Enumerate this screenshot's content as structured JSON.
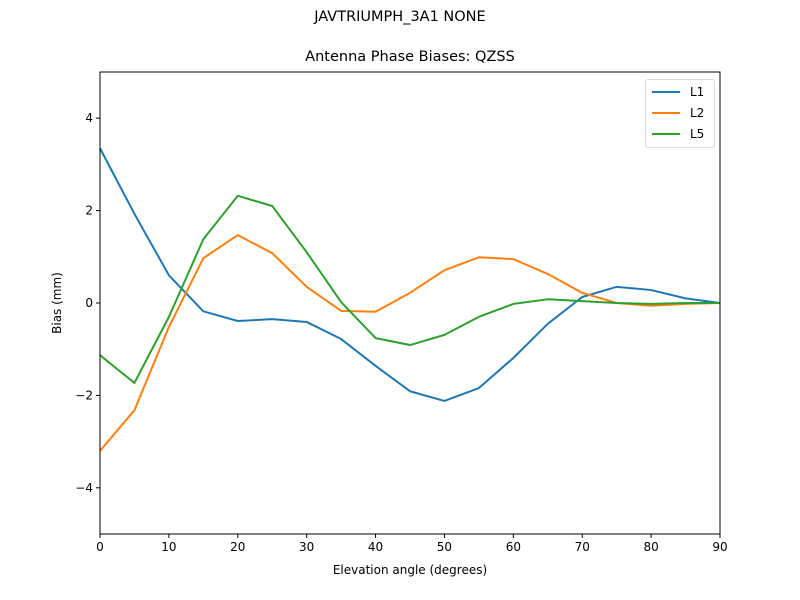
{
  "header": {
    "suptitle": "JAVTRIUMPH_3A1  NONE",
    "title": "Antenna Phase Biases: QZSS"
  },
  "axes": {
    "xlabel": "Elevation angle (degrees)",
    "ylabel": "Bias (mm)",
    "xticks": [
      "0",
      "10",
      "20",
      "30",
      "40",
      "50",
      "60",
      "70",
      "80",
      "90"
    ],
    "yticks": [
      "4",
      "2",
      "0",
      "−2",
      "−4"
    ]
  },
  "legend": {
    "items": [
      {
        "label": "L1",
        "color": "#1f77b4"
      },
      {
        "label": "L2",
        "color": "#ff7f0e"
      },
      {
        "label": "L5",
        "color": "#2ca02c"
      }
    ]
  },
  "chart_data": {
    "type": "line",
    "title": "Antenna Phase Biases: QZSS",
    "suptitle": "JAVTRIUMPH_3A1  NONE",
    "xlabel": "Elevation angle (degrees)",
    "ylabel": "Bias (mm)",
    "xlim": [
      0,
      90
    ],
    "ylim": [
      -5,
      5
    ],
    "grid": false,
    "legend_position": "upper right",
    "x": [
      0,
      5,
      10,
      15,
      20,
      25,
      30,
      35,
      40,
      45,
      50,
      55,
      60,
      65,
      70,
      75,
      80,
      85,
      90
    ],
    "series": [
      {
        "name": "L1",
        "color": "#1f77b4",
        "values": [
          3.35,
          1.93,
          0.6,
          -0.18,
          -0.39,
          -0.35,
          -0.41,
          -0.78,
          -1.36,
          -1.91,
          -2.12,
          -1.84,
          -1.19,
          -0.45,
          0.13,
          0.35,
          0.28,
          0.1,
          0.0
        ]
      },
      {
        "name": "L2",
        "color": "#ff7f0e",
        "values": [
          -3.2,
          -2.32,
          -0.52,
          0.97,
          1.47,
          1.08,
          0.35,
          -0.17,
          -0.19,
          0.22,
          0.71,
          0.99,
          0.95,
          0.63,
          0.22,
          0.0,
          -0.06,
          -0.02,
          0.0
        ]
      },
      {
        "name": "L5",
        "color": "#2ca02c",
        "values": [
          -1.13,
          -1.73,
          -0.3,
          1.38,
          2.32,
          2.1,
          1.1,
          0.02,
          -0.76,
          -0.91,
          -0.69,
          -0.3,
          -0.02,
          0.08,
          0.04,
          0.0,
          -0.02,
          0.0,
          0.0
        ]
      }
    ]
  }
}
